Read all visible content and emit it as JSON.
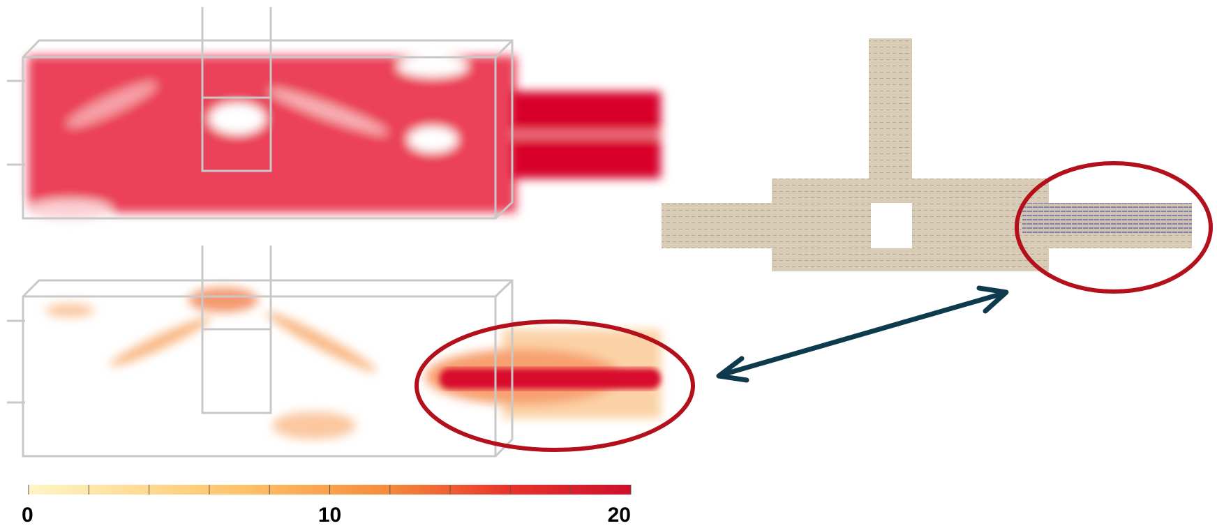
{
  "colorbar": {
    "lim": [
      0,
      20
    ],
    "ticks": [
      0,
      10,
      20
    ],
    "minor_ticks": [
      0,
      2,
      4,
      6,
      8,
      10,
      12,
      14,
      16,
      18,
      20
    ]
  }
}
